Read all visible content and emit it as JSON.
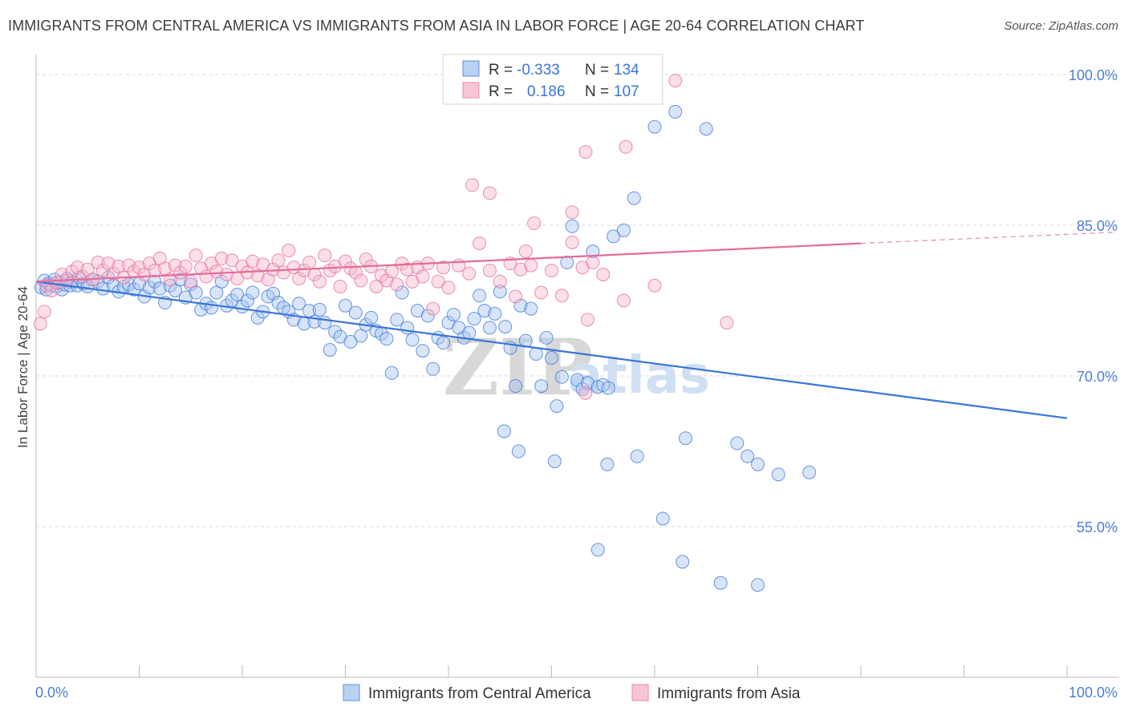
{
  "title": "IMMIGRANTS FROM CENTRAL AMERICA VS IMMIGRANTS FROM ASIA IN LABOR FORCE | AGE 20-64 CORRELATION CHART",
  "source": "Source: ZipAtlas.com",
  "watermark": {
    "zip": "ZIP",
    "atlas": "atlas"
  },
  "legend": {
    "rows": [
      {
        "r_label": "R =",
        "r_value": "-0.333",
        "n_label": "N =",
        "n_value": "134"
      },
      {
        "r_label": "R =",
        "r_value": "0.186",
        "n_label": "N =",
        "n_value": "107"
      }
    ]
  },
  "colors": {
    "blue": "#3a74d8",
    "blue_fill": "#a9c6f0",
    "pink": "#e36b9a",
    "pink_fill": "#f6b8cc",
    "grid": "#d9d9d9"
  },
  "chart_data": {
    "type": "scatter",
    "title": "IMMIGRANTS FROM CENTRAL AMERICA VS IMMIGRANTS FROM ASIA IN LABOR FORCE | AGE 20-64 CORRELATION CHART",
    "xlabel": "",
    "ylabel": "In Labor Force | Age 20-64",
    "xlim": [
      0,
      100
    ],
    "ylim": [
      40,
      102
    ],
    "x_tick_labels": [
      "0.0%",
      "100.0%"
    ],
    "y_ticks": [
      55,
      70,
      85,
      100
    ],
    "y_tick_labels": [
      "55.0%",
      "70.0%",
      "85.0%",
      "100.0%"
    ],
    "series": [
      {
        "name": "Immigrants from Central America",
        "color": "blue",
        "trend": {
          "x0": 0,
          "y0": 79.4,
          "x1": 100,
          "y1": 65.8
        },
        "points": [
          [
            0.5,
            78.8
          ],
          [
            0.8,
            79.5
          ],
          [
            1.0,
            78.6
          ],
          [
            1.2,
            79.2
          ],
          [
            1.5,
            79.0
          ],
          [
            1.8,
            79.6
          ],
          [
            2.0,
            78.9
          ],
          [
            2.3,
            79.3
          ],
          [
            2.5,
            78.6
          ],
          [
            2.8,
            79.1
          ],
          [
            3.0,
            79.7
          ],
          [
            3.3,
            79.0
          ],
          [
            3.6,
            79.4
          ],
          [
            4.0,
            79.0
          ],
          [
            4.2,
            79.8
          ],
          [
            4.6,
            79.2
          ],
          [
            5.0,
            78.9
          ],
          [
            5.5,
            79.6
          ],
          [
            6.0,
            79.4
          ],
          [
            6.5,
            78.7
          ],
          [
            7.0,
            79.8
          ],
          [
            7.5,
            79.0
          ],
          [
            8.0,
            78.4
          ],
          [
            8.5,
            78.9
          ],
          [
            9.0,
            79.1
          ],
          [
            9.5,
            78.6
          ],
          [
            10.0,
            79.2
          ],
          [
            10.5,
            77.9
          ],
          [
            11.0,
            78.8
          ],
          [
            11.5,
            79.4
          ],
          [
            12.0,
            78.7
          ],
          [
            12.5,
            77.3
          ],
          [
            13.0,
            79.0
          ],
          [
            13.5,
            78.5
          ],
          [
            14.0,
            79.6
          ],
          [
            14.5,
            77.8
          ],
          [
            15.0,
            79.1
          ],
          [
            15.5,
            78.3
          ],
          [
            16.0,
            76.6
          ],
          [
            16.5,
            77.2
          ],
          [
            17.0,
            76.8
          ],
          [
            17.5,
            78.3
          ],
          [
            18.0,
            79.4
          ],
          [
            18.5,
            77.0
          ],
          [
            19.0,
            77.5
          ],
          [
            19.5,
            78.1
          ],
          [
            20.0,
            76.9
          ],
          [
            20.5,
            77.5
          ],
          [
            21.0,
            78.3
          ],
          [
            21.5,
            75.8
          ],
          [
            22.0,
            76.4
          ],
          [
            22.5,
            77.9
          ],
          [
            23.0,
            78.2
          ],
          [
            23.5,
            77.3
          ],
          [
            24.0,
            76.8
          ],
          [
            24.5,
            76.4
          ],
          [
            25.0,
            75.6
          ],
          [
            25.5,
            77.2
          ],
          [
            26.0,
            75.2
          ],
          [
            26.5,
            76.5
          ],
          [
            27.0,
            75.4
          ],
          [
            27.5,
            76.6
          ],
          [
            28.0,
            75.3
          ],
          [
            28.5,
            72.6
          ],
          [
            29.0,
            74.4
          ],
          [
            29.5,
            73.9
          ],
          [
            30.0,
            77.0
          ],
          [
            30.5,
            73.4
          ],
          [
            31.0,
            76.3
          ],
          [
            31.5,
            74.0
          ],
          [
            32.0,
            75.1
          ],
          [
            32.5,
            75.8
          ],
          [
            33.0,
            74.5
          ],
          [
            33.5,
            74.2
          ],
          [
            34.0,
            73.7
          ],
          [
            34.5,
            70.3
          ],
          [
            35.0,
            75.6
          ],
          [
            35.5,
            78.3
          ],
          [
            36.0,
            74.8
          ],
          [
            36.5,
            73.6
          ],
          [
            37.0,
            76.5
          ],
          [
            37.5,
            72.5
          ],
          [
            38.0,
            76.0
          ],
          [
            38.5,
            70.7
          ],
          [
            39.0,
            73.8
          ],
          [
            39.5,
            73.3
          ],
          [
            40.0,
            75.3
          ],
          [
            40.5,
            76.1
          ],
          [
            41.0,
            74.8
          ],
          [
            41.5,
            73.8
          ],
          [
            42.0,
            74.3
          ],
          [
            42.5,
            75.7
          ],
          [
            43.0,
            78.0
          ],
          [
            43.5,
            76.5
          ],
          [
            44.0,
            74.8
          ],
          [
            44.5,
            76.2
          ],
          [
            45.0,
            78.4
          ],
          [
            45.5,
            74.9
          ],
          [
            46.0,
            72.8
          ],
          [
            46.5,
            69.0
          ],
          [
            47.0,
            77.0
          ],
          [
            47.5,
            73.5
          ],
          [
            48.0,
            76.7
          ],
          [
            48.5,
            72.2
          ],
          [
            49.0,
            69.0
          ],
          [
            49.5,
            73.8
          ],
          [
            50.0,
            71.8
          ],
          [
            50.5,
            67.0
          ],
          [
            51.0,
            69.9
          ],
          [
            51.5,
            81.3
          ],
          [
            52.0,
            84.9
          ],
          [
            52.5,
            69.6
          ],
          [
            53.0,
            68.7
          ],
          [
            53.5,
            69.3
          ],
          [
            54.0,
            82.4
          ],
          [
            54.5,
            68.9
          ],
          [
            55.0,
            69.1
          ],
          [
            55.5,
            68.8
          ],
          [
            56.0,
            83.9
          ],
          [
            57.0,
            84.5
          ],
          [
            58.0,
            87.7
          ],
          [
            60.0,
            94.8
          ],
          [
            62.0,
            96.3
          ],
          [
            63.0,
            63.8
          ],
          [
            65.0,
            94.6
          ],
          [
            68.0,
            63.3
          ],
          [
            69.0,
            62.0
          ],
          [
            70.0,
            61.2
          ],
          [
            72.0,
            60.2
          ],
          [
            75.0,
            60.4
          ],
          [
            45.4,
            64.5
          ],
          [
            46.8,
            62.5
          ],
          [
            50.3,
            61.5
          ],
          [
            55.4,
            61.2
          ],
          [
            54.5,
            52.7
          ],
          [
            58.3,
            62.0
          ],
          [
            60.8,
            55.8
          ],
          [
            62.7,
            51.5
          ],
          [
            66.4,
            49.4
          ],
          [
            70.0,
            49.2
          ]
        ]
      },
      {
        "name": "Immigrants from Asia",
        "color": "pink",
        "trend": {
          "x0": 0,
          "y0": 79.4,
          "x1": 80,
          "y1": 83.2,
          "dash_to_x": 100,
          "dash_to_y": 84.1
        },
        "points": [
          [
            0.4,
            75.2
          ],
          [
            0.8,
            76.4
          ],
          [
            1.0,
            79.0
          ],
          [
            1.5,
            78.5
          ],
          [
            2.0,
            79.3
          ],
          [
            2.5,
            80.1
          ],
          [
            3.0,
            79.5
          ],
          [
            3.5,
            80.4
          ],
          [
            4.0,
            80.8
          ],
          [
            4.5,
            79.9
          ],
          [
            5.0,
            80.6
          ],
          [
            5.5,
            79.6
          ],
          [
            6.0,
            81.3
          ],
          [
            6.5,
            80.5
          ],
          [
            7.0,
            81.2
          ],
          [
            7.5,
            80.2
          ],
          [
            8.0,
            80.9
          ],
          [
            8.5,
            79.8
          ],
          [
            9.0,
            81.0
          ],
          [
            9.5,
            80.4
          ],
          [
            10.0,
            80.8
          ],
          [
            10.5,
            80.1
          ],
          [
            11.0,
            81.2
          ],
          [
            11.5,
            80.5
          ],
          [
            12.0,
            81.7
          ],
          [
            12.5,
            80.7
          ],
          [
            13.0,
            79.6
          ],
          [
            13.5,
            81.0
          ],
          [
            14.0,
            80.3
          ],
          [
            14.5,
            80.9
          ],
          [
            15.0,
            79.4
          ],
          [
            15.5,
            82.0
          ],
          [
            16.0,
            80.7
          ],
          [
            16.5,
            79.9
          ],
          [
            17.0,
            81.2
          ],
          [
            17.5,
            80.4
          ],
          [
            18.0,
            81.7
          ],
          [
            18.5,
            80.1
          ],
          [
            19.0,
            81.5
          ],
          [
            19.5,
            79.7
          ],
          [
            20.0,
            80.9
          ],
          [
            20.5,
            80.3
          ],
          [
            21.0,
            81.4
          ],
          [
            21.5,
            80.0
          ],
          [
            22.0,
            81.1
          ],
          [
            22.5,
            79.6
          ],
          [
            23.0,
            80.6
          ],
          [
            23.5,
            81.5
          ],
          [
            24.0,
            80.3
          ],
          [
            24.5,
            82.5
          ],
          [
            25.0,
            80.8
          ],
          [
            25.5,
            79.7
          ],
          [
            26.0,
            80.5
          ],
          [
            26.5,
            81.3
          ],
          [
            27.0,
            80.1
          ],
          [
            27.5,
            79.4
          ],
          [
            28.0,
            82.0
          ],
          [
            28.5,
            80.5
          ],
          [
            29.0,
            80.9
          ],
          [
            29.5,
            78.9
          ],
          [
            30.0,
            81.4
          ],
          [
            30.5,
            80.7
          ],
          [
            31.0,
            80.3
          ],
          [
            31.5,
            79.5
          ],
          [
            32.0,
            81.6
          ],
          [
            32.5,
            80.9
          ],
          [
            33.0,
            78.9
          ],
          [
            33.5,
            80.0
          ],
          [
            34.0,
            79.5
          ],
          [
            34.5,
            80.4
          ],
          [
            35.0,
            79.1
          ],
          [
            35.5,
            81.2
          ],
          [
            36.0,
            80.6
          ],
          [
            36.5,
            79.4
          ],
          [
            37.0,
            80.8
          ],
          [
            37.5,
            79.9
          ],
          [
            38.0,
            81.2
          ],
          [
            38.5,
            76.7
          ],
          [
            39.0,
            79.4
          ],
          [
            39.5,
            80.8
          ],
          [
            40.0,
            78.8
          ],
          [
            41.0,
            81.0
          ],
          [
            42.0,
            80.2
          ],
          [
            43.0,
            83.2
          ],
          [
            44.0,
            80.5
          ],
          [
            45.0,
            79.4
          ],
          [
            46.0,
            81.2
          ],
          [
            46.5,
            77.9
          ],
          [
            47.0,
            80.6
          ],
          [
            47.5,
            82.4
          ],
          [
            48.0,
            81.0
          ],
          [
            49.0,
            78.3
          ],
          [
            50.0,
            80.5
          ],
          [
            51.0,
            78.0
          ],
          [
            52.0,
            83.3
          ],
          [
            53.0,
            80.8
          ],
          [
            54.0,
            81.3
          ],
          [
            55.0,
            80.1
          ],
          [
            57.0,
            77.5
          ],
          [
            60.0,
            79.0
          ],
          [
            42.3,
            89.0
          ],
          [
            44.0,
            88.2
          ],
          [
            48.3,
            85.2
          ],
          [
            52.0,
            86.3
          ],
          [
            53.3,
            92.3
          ],
          [
            57.2,
            92.8
          ],
          [
            62.0,
            99.4
          ],
          [
            53.5,
            75.6
          ],
          [
            67.0,
            75.3
          ],
          [
            53.3,
            68.3
          ]
        ]
      }
    ]
  },
  "axis": {
    "ylabel": "In Labor Force | Age 20-64",
    "x_min_label": "0.0%",
    "x_max_label": "100.0%"
  },
  "bottom_legend": {
    "items": [
      "Immigrants from Central America",
      "Immigrants from Asia"
    ]
  }
}
